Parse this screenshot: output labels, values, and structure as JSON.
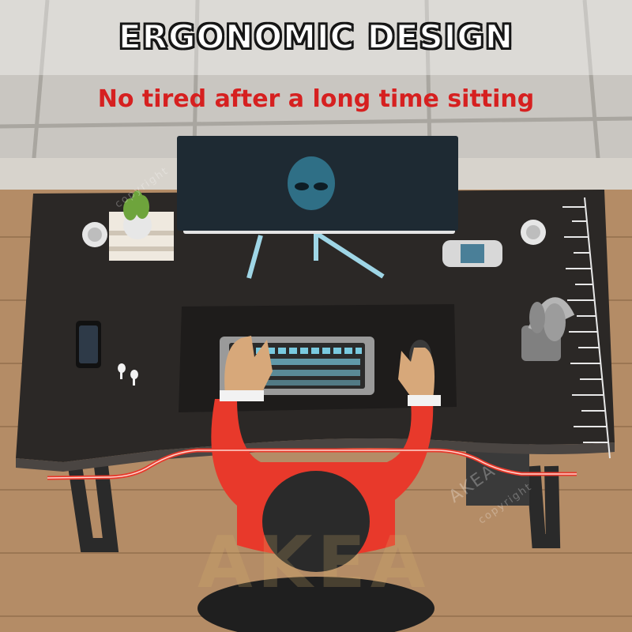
{
  "headline": "ERGONOMIC DESIGN",
  "subline": "No tired after a long time sitting",
  "watermark": {
    "brand": "AKEA",
    "notice": "copyright"
  },
  "colors": {
    "desk": "#2b2826",
    "floor": "#b48c66",
    "shirt": "#e8392b",
    "curve_line": "#e8392b",
    "headline_text": "#ffffff",
    "subline_text": "#d62020"
  }
}
